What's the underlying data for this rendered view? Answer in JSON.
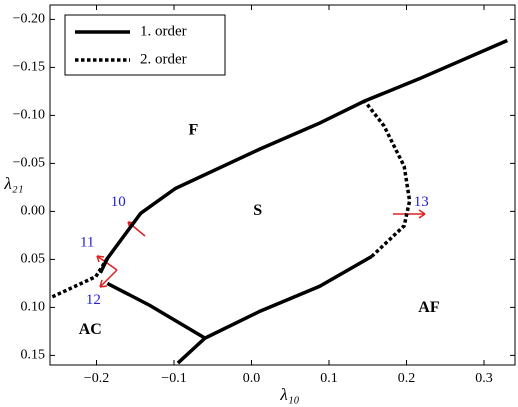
{
  "chart_data": {
    "type": "line",
    "xlabel": "λ₁₀",
    "ylabel": "λ₂₁",
    "xlim": [
      -0.26,
      0.34
    ],
    "ylim": [
      -0.215,
      0.16
    ],
    "y_inverted": true,
    "xticks": [
      {
        "value": -0.2,
        "label": "−0.2"
      },
      {
        "value": -0.1,
        "label": "−0.1"
      },
      {
        "value": 0,
        "label": "0.0"
      },
      {
        "value": 0.1,
        "label": "0.1"
      },
      {
        "value": 0.2,
        "label": "0.2"
      },
      {
        "value": 0.3,
        "label": "0.3"
      }
    ],
    "yticks": [
      {
        "value": -0.2,
        "label": "−0.20"
      },
      {
        "value": -0.15,
        "label": "−0.15"
      },
      {
        "value": -0.1,
        "label": "−0.10"
      },
      {
        "value": -0.05,
        "label": "−0.05"
      },
      {
        "value": 0,
        "label": "0.00"
      },
      {
        "value": 0.05,
        "label": "0.05"
      },
      {
        "value": 0.1,
        "label": "0.10"
      },
      {
        "value": 0.15,
        "label": "0.15"
      }
    ],
    "legend": "upper left",
    "series": [
      {
        "name": "1. order",
        "color": "#000000",
        "style": "solid",
        "x": [
          -0.195,
          -0.186,
          -0.143,
          -0.098,
          0.011,
          0.088,
          0.146,
          0.216,
          0.33,
          null,
          -0.095,
          -0.06,
          0.011,
          0.088,
          0.155,
          null,
          -0.186,
          -0.131,
          -0.06
        ],
        "values": [
          0.064,
          0.049,
          0.002,
          -0.024,
          -0.065,
          -0.092,
          -0.115,
          -0.138,
          -0.178,
          null,
          0.158,
          0.132,
          0.104,
          0.078,
          0.047,
          null,
          0.075,
          0.098,
          0.132
        ]
      },
      {
        "name": "2. order",
        "color": "#000000",
        "style": "dotted",
        "x": [
          0.155,
          0.197,
          0.204,
          0.197,
          0.171,
          0.146,
          null,
          -0.257,
          -0.201,
          -0.186
        ],
        "values": [
          0.047,
          0.015,
          -0.011,
          -0.047,
          -0.089,
          -0.115,
          null,
          0.089,
          0.068,
          0.049
        ]
      }
    ],
    "annotations": [
      {
        "text": "F",
        "x": -0.075,
        "y": -0.084,
        "color": "#000000"
      },
      {
        "text": "S",
        "x": 0.008,
        "y": 0.0,
        "color": "#000000"
      },
      {
        "text": "AC",
        "x": -0.208,
        "y": 0.124,
        "color": "#000000"
      },
      {
        "text": "AF",
        "x": 0.229,
        "y": 0.101,
        "color": "#000000"
      },
      {
        "text": "10",
        "x": -0.172,
        "y": -0.009,
        "color": "#1f1fd6"
      },
      {
        "text": "11",
        "x": -0.212,
        "y": 0.033,
        "color": "#1f1fd6"
      },
      {
        "text": "12",
        "x": -0.204,
        "y": 0.093,
        "color": "#1f1fd6"
      },
      {
        "text": "13",
        "x": 0.219,
        "y": -0.009,
        "color": "#1f1fd6"
      }
    ]
  }
}
